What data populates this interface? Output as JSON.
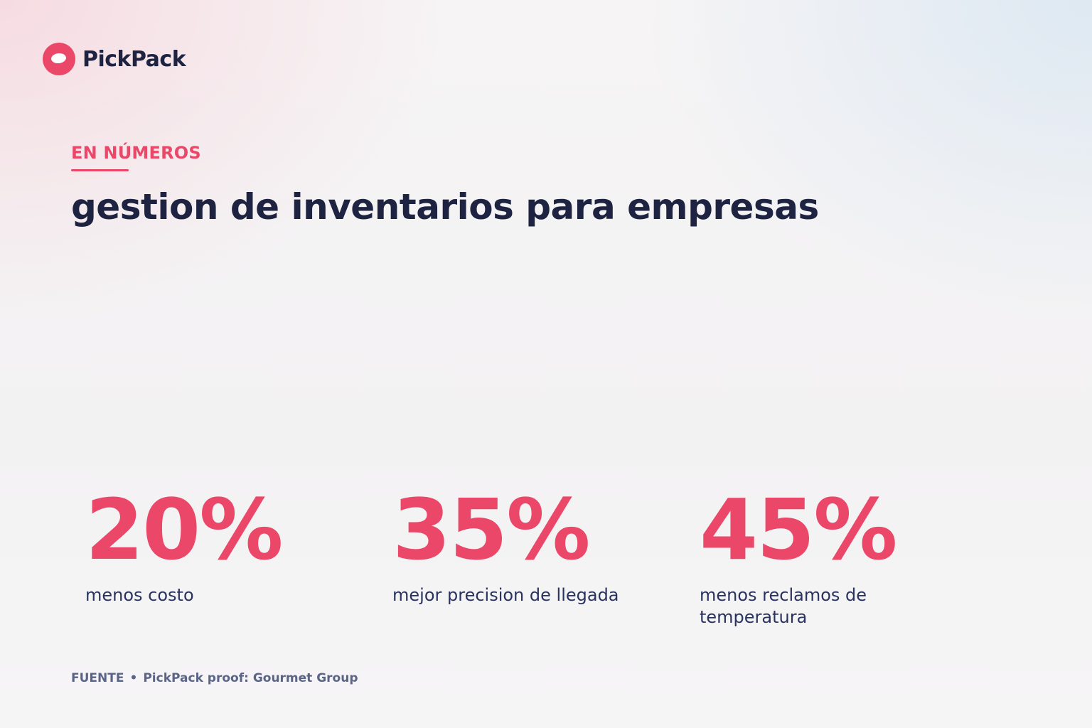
{
  "brand": {
    "name": "PickPack"
  },
  "eyebrow": "EN NÚMEROS",
  "heading": "gestion de inventarios para empresas",
  "stats": [
    {
      "value": "20%",
      "label": "menos costo"
    },
    {
      "value": "35%",
      "label": "mejor precision de llegada"
    },
    {
      "value": "45%",
      "label": "menos reclamos de temperatura"
    }
  ],
  "source": {
    "label": "FUENTE",
    "separator": "•",
    "text": "PickPack proof: Gourmet Group"
  },
  "colors": {
    "accent": "#eb4768",
    "ink": "#1d2340",
    "muted": "#5a6487"
  }
}
